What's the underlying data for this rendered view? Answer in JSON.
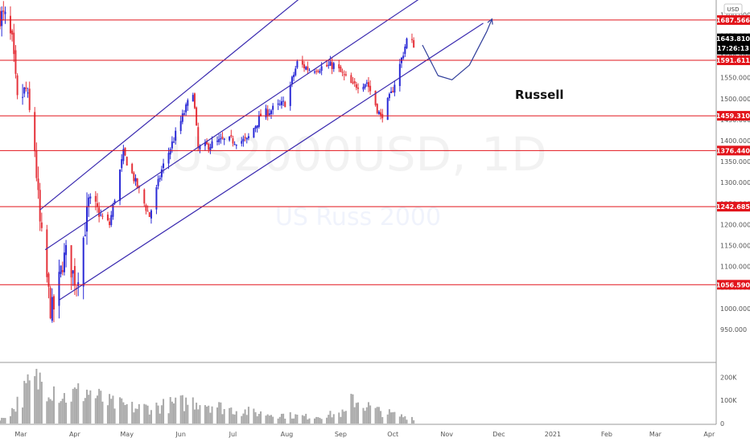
{
  "symbol": "US2000USD, 1D",
  "symbol_description": "US Russ 2000",
  "annotation": "Russell",
  "currency": "USD",
  "colors": {
    "up": "#2a2ad6",
    "down": "#e5333b",
    "channel": "#3b2bb0",
    "level": "#e2141b",
    "current_tag": "#000000",
    "volume": "#a9a9a9",
    "projection": "#2f3d9a"
  },
  "chart_data": {
    "type": "candlestick",
    "title": "US2000USD, 1D",
    "subtitle": "US Russ 2000",
    "ylim": [
      925,
      1720
    ],
    "xlim": [
      "2020-02-18",
      "2021-04-05"
    ],
    "price_ticks": [
      950,
      1000,
      1050,
      1100,
      1150,
      1200,
      1250,
      1300,
      1350,
      1400,
      1450,
      1500,
      1550,
      1600,
      1650,
      1700
    ],
    "price_tick_labels": [
      "950.000",
      "1000.000",
      "1050.000",
      "1100.000",
      "1150.000",
      "1200.000",
      "1250.000",
      "1300.000",
      "1350.000",
      "1400.000",
      "1450.000",
      "1500.000",
      "1550.000",
      "1600.000",
      "1650.000",
      "1700.000"
    ],
    "time_ticks": [
      {
        "date": "2020-03-01",
        "label": "Mar"
      },
      {
        "date": "2020-04-01",
        "label": "Apr"
      },
      {
        "date": "2020-05-01",
        "label": "May"
      },
      {
        "date": "2020-06-01",
        "label": "Jun"
      },
      {
        "date": "2020-07-01",
        "label": "Jul"
      },
      {
        "date": "2020-08-01",
        "label": "Aug"
      },
      {
        "date": "2020-09-01",
        "label": "Sep"
      },
      {
        "date": "2020-10-01",
        "label": "Oct"
      },
      {
        "date": "2020-11-01",
        "label": "Nov"
      },
      {
        "date": "2020-12-01",
        "label": "Dec"
      },
      {
        "date": "2021-01-01",
        "label": "2021"
      },
      {
        "date": "2021-02-01",
        "label": "Feb"
      },
      {
        "date": "2021-03-01",
        "label": "Mar"
      },
      {
        "date": "2021-04-01",
        "label": "Apr"
      }
    ],
    "horizontal_levels": [
      {
        "value": 1687.566,
        "label": "1687.566"
      },
      {
        "value": 1591.611,
        "label": "1591.611"
      },
      {
        "value": 1459.31,
        "label": "1459.310"
      },
      {
        "value": 1376.44,
        "label": "1376.440"
      },
      {
        "value": 1242.685,
        "label": "1242.685"
      },
      {
        "value": 1056.59,
        "label": "1056.590"
      }
    ],
    "current_price": {
      "value": 1643.81,
      "label": "1643.810",
      "countdown": "17:26:13"
    },
    "channel_lines": [
      {
        "start": [
          "2020-03-12",
          1235
        ],
        "end": [
          "2020-10-13",
          1960
        ]
      },
      {
        "start": [
          "2020-03-15",
          1140
        ],
        "end": [
          "2020-10-26",
          1765
        ]
      },
      {
        "start": [
          "2020-03-23",
          1020
        ],
        "end": [
          "2020-11-22",
          1680
        ]
      }
    ],
    "projection_arrow": [
      [
        "2020-10-18",
        1628
      ],
      [
        "2020-10-27",
        1555
      ],
      [
        "2020-11-04",
        1545
      ],
      [
        "2020-11-14",
        1580
      ],
      [
        "2020-11-24",
        1660
      ],
      [
        "2020-11-27",
        1690
      ]
    ],
    "ohlc_anchors": [
      [
        "2020-02-18",
        1700
      ],
      [
        "2020-02-21",
        1690
      ],
      [
        "2020-02-25",
        1630
      ],
      [
        "2020-02-28",
        1490
      ],
      [
        "2020-03-04",
        1520
      ],
      [
        "2020-03-09",
        1380
      ],
      [
        "2020-03-12",
        1200
      ],
      [
        "2020-03-16",
        1070
      ],
      [
        "2020-03-18",
        1000
      ],
      [
        "2020-03-20",
        1000
      ],
      [
        "2020-03-25",
        1110
      ],
      [
        "2020-03-27",
        1130
      ],
      [
        "2020-04-02",
        1060
      ],
      [
        "2020-04-09",
        1250
      ],
      [
        "2020-04-21",
        1200
      ],
      [
        "2020-04-29",
        1370
      ],
      [
        "2020-05-14",
        1220
      ],
      [
        "2020-05-21",
        1330
      ],
      [
        "2020-06-08",
        1520
      ],
      [
        "2020-06-11",
        1380
      ],
      [
        "2020-06-25",
        1400
      ],
      [
        "2020-07-09",
        1400
      ],
      [
        "2020-07-17",
        1460
      ],
      [
        "2020-07-31",
        1490
      ],
      [
        "2020-08-07",
        1585
      ],
      [
        "2020-08-14",
        1570
      ],
      [
        "2020-08-28",
        1580
      ],
      [
        "2020-09-08",
        1530
      ],
      [
        "2020-09-16",
        1540
      ],
      [
        "2020-09-24",
        1455
      ],
      [
        "2020-09-30",
        1510
      ],
      [
        "2020-10-05",
        1580
      ],
      [
        "2020-10-09",
        1640
      ],
      [
        "2020-10-13",
        1630
      ]
    ],
    "volume_ticks": [
      {
        "value": 0,
        "label": "0"
      },
      {
        "value": 100000,
        "label": "100K"
      },
      {
        "value": 200000,
        "label": "200K"
      }
    ],
    "volume_ylim": [
      0,
      250000
    ],
    "volume_envelope": [
      [
        "2020-02-18",
        15000
      ],
      [
        "2020-02-26",
        80000
      ],
      [
        "2020-03-05",
        190000
      ],
      [
        "2020-03-12",
        230000
      ],
      [
        "2020-03-19",
        200000
      ],
      [
        "2020-03-26",
        140000
      ],
      [
        "2020-04-08",
        170000
      ],
      [
        "2020-04-20",
        110000
      ],
      [
        "2020-05-06",
        80000
      ],
      [
        "2020-05-20",
        90000
      ],
      [
        "2020-06-11",
        120000
      ],
      [
        "2020-06-26",
        80000
      ],
      [
        "2020-07-15",
        55000
      ],
      [
        "2020-08-14",
        35000
      ],
      [
        "2020-09-04",
        55000
      ],
      [
        "2020-09-08",
        130000
      ],
      [
        "2020-09-21",
        70000
      ],
      [
        "2020-10-05",
        40000
      ],
      [
        "2020-10-14",
        30000
      ]
    ]
  }
}
